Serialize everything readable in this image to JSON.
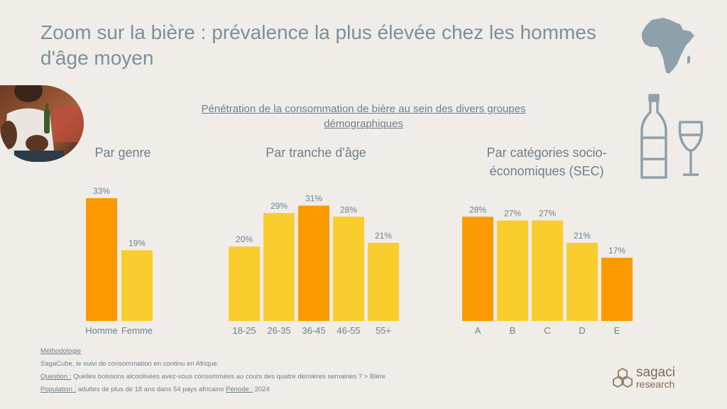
{
  "title": "Zoom sur la bière : prévalence la plus élevée chez les hommes d'âge moyen",
  "subtitle": "Pénétration de la consommation de bière au sein des divers groupes démographiques",
  "colors": {
    "highlight": "#fb9900",
    "normal": "#f9cd2d",
    "text": "#6d7f8b",
    "title": "#7d8f9b"
  },
  "chart_data": [
    {
      "type": "bar",
      "title": "Par genre",
      "categories": [
        "Homme",
        "Femme"
      ],
      "values": [
        33,
        19
      ],
      "labels": [
        "33%",
        "19%"
      ],
      "highlight": [
        true,
        false
      ],
      "ylim": [
        0,
        33
      ]
    },
    {
      "type": "bar",
      "title": "Par tranche d'âge",
      "categories": [
        "18-25",
        "26-35",
        "36-45",
        "46-55",
        "55+"
      ],
      "values": [
        20,
        29,
        31,
        28,
        21
      ],
      "labels": [
        "20%",
        "29%",
        "31%",
        "28%",
        "21%"
      ],
      "highlight": [
        false,
        false,
        true,
        false,
        false
      ],
      "ylim": [
        0,
        33
      ]
    },
    {
      "type": "bar",
      "title": "Par catégories socio-économiques (SEC)",
      "categories": [
        "A",
        "B",
        "C",
        "D",
        "E"
      ],
      "values": [
        28,
        27,
        27,
        21,
        17
      ],
      "labels": [
        "28%",
        "27%",
        "27%",
        "21%",
        "17%"
      ],
      "highlight": [
        true,
        false,
        false,
        false,
        true
      ],
      "ylim": [
        0,
        33
      ]
    }
  ],
  "footer": {
    "methodology_label": "Méthodologie",
    "methodology_text": "SagaCube, le suivi de consommation en continu en Afrique.",
    "question_label": "Question :",
    "question_text": " Quelles boissons alcoolisées avez-vous consommées au cours des quatre dernières semaines ? > Bière",
    "population_label": "Population :",
    "population_text": " adultes de plus de 18 ans dans 54 pays africains ",
    "period_label": "Période :",
    "period_text": " 2024"
  },
  "logo": {
    "line1": "sagaci",
    "line2": "research"
  },
  "icons": {
    "map": "africa-map-icon",
    "drinks": "beer-bottle-glass-icon"
  }
}
